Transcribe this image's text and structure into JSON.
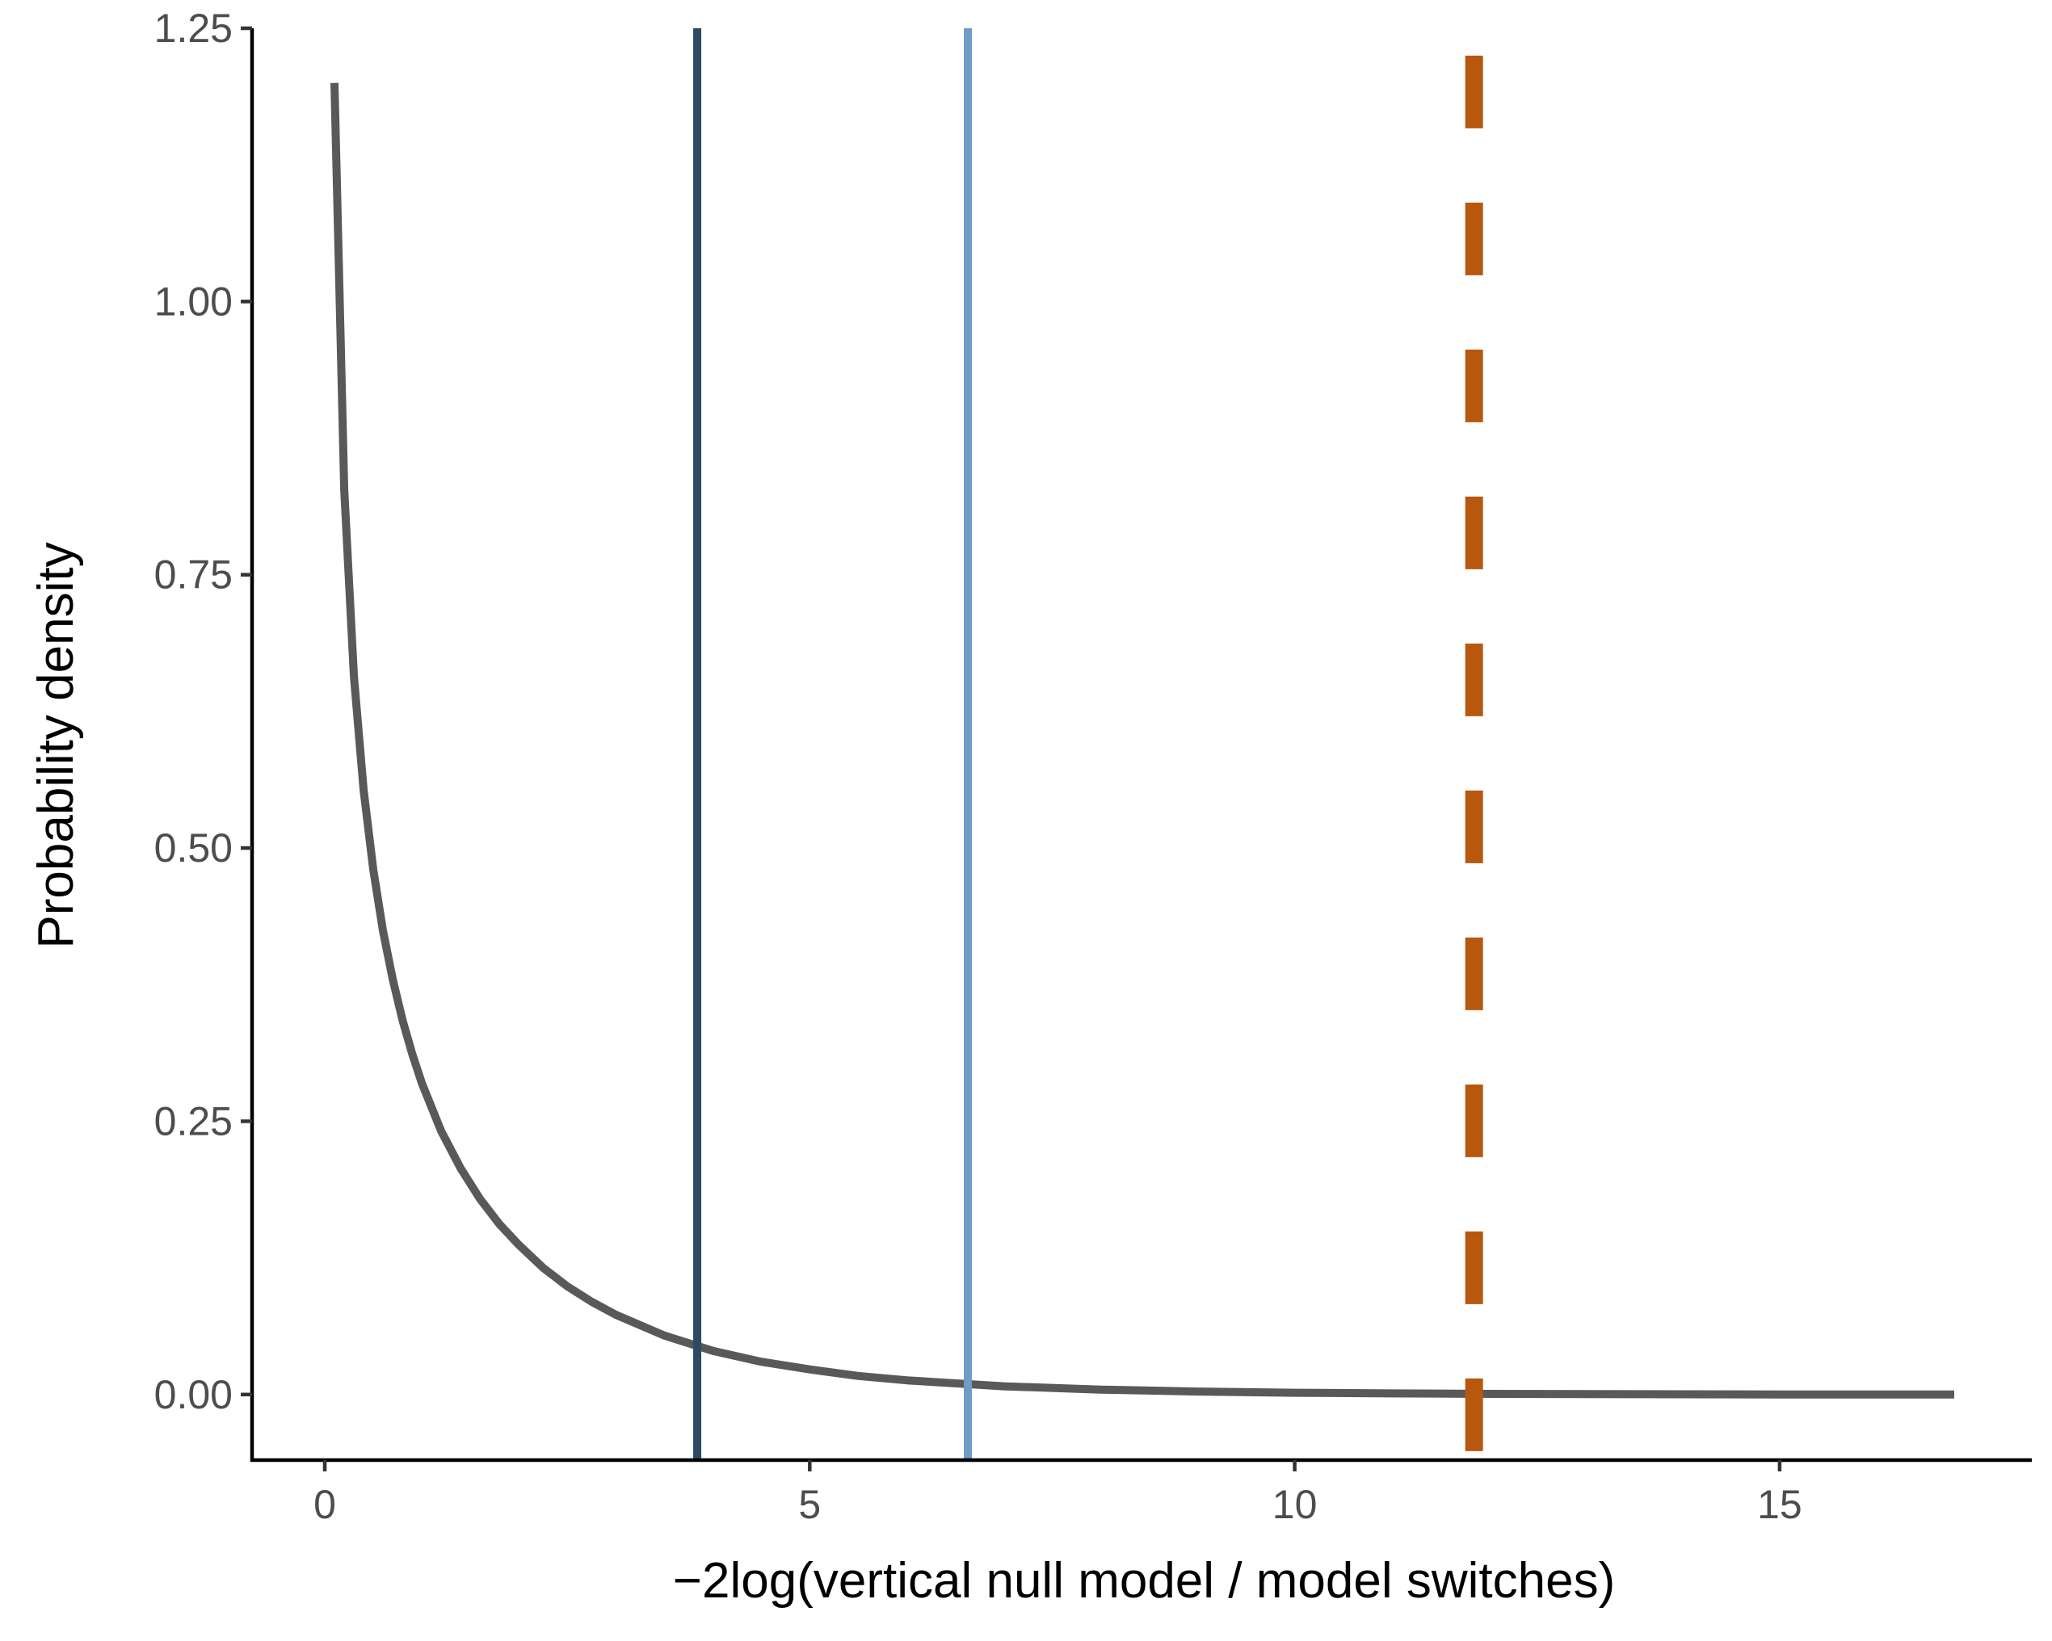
{
  "chart_data": {
    "type": "line",
    "title": "",
    "xlabel": "−2log(vertical null model / model switches)",
    "ylabel": "Probability density",
    "xlim": [
      -0.75,
      17.6
    ],
    "ylim": [
      -0.06,
      1.25
    ],
    "x_ticks": [
      0,
      5,
      10,
      15
    ],
    "x_tick_labels": [
      "0",
      "5",
      "10",
      "15"
    ],
    "y_ticks": [
      0,
      0.25,
      0.5,
      0.75,
      1.0,
      1.25
    ],
    "y_tick_labels": [
      "0.00",
      "0.25",
      "0.50",
      "0.75",
      "1.00",
      "1.25"
    ],
    "grid": false,
    "legend": "none",
    "series": [
      {
        "color": "#595959",
        "x": [
          0.1,
          0.2,
          0.3,
          0.4,
          0.5,
          0.6,
          0.7,
          0.8,
          0.9,
          1.0,
          1.2,
          1.4,
          1.6,
          1.8,
          2.0,
          2.25,
          2.5,
          2.75,
          3.0,
          3.5,
          4.0,
          4.5,
          5.0,
          5.5,
          6.0,
          7.0,
          8.0,
          9.0,
          10.0,
          11.0,
          12.0,
          13.0,
          14.0,
          15.0,
          16.0,
          16.8
        ],
        "y": [
          1.2,
          0.828,
          0.657,
          0.553,
          0.48,
          0.424,
          0.38,
          0.343,
          0.312,
          0.285,
          0.241,
          0.207,
          0.179,
          0.156,
          0.137,
          0.116,
          0.099,
          0.085,
          0.073,
          0.054,
          0.04,
          0.03,
          0.023,
          0.017,
          0.013,
          0.0075,
          0.0045,
          0.0027,
          0.0016,
          0.001,
          0.0006,
          0.0004,
          0.0002,
          0.0001,
          0.0001,
          0.0
        ]
      }
    ],
    "reference_lines": [
      {
        "x": 3.84,
        "color": "#2e4a63",
        "style": "solid"
      },
      {
        "x": 6.63,
        "color": "#6f9bc5",
        "style": "solid"
      },
      {
        "x": 11.85,
        "color": "#b8580f",
        "style": "dashed"
      }
    ]
  }
}
